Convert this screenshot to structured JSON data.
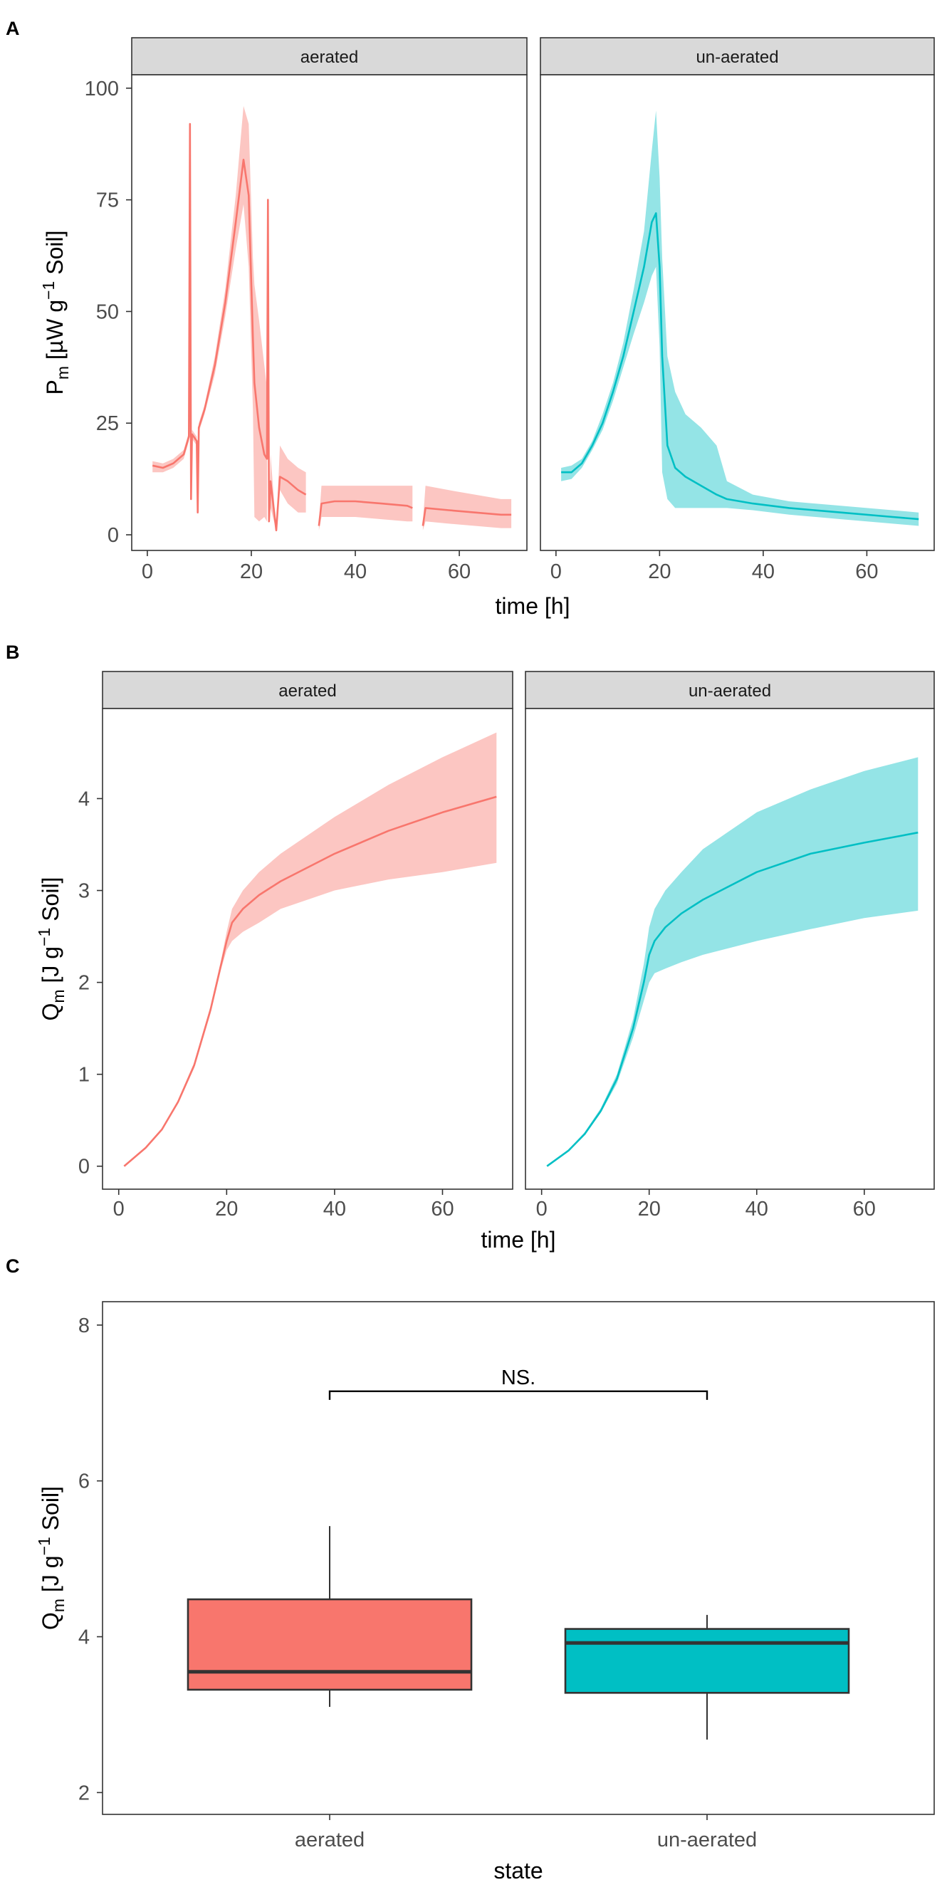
{
  "chart_data": [
    {
      "panel": "A",
      "type": "line",
      "ylabel": "P_m [µW g^-1 Soil]",
      "ylabel_parts": {
        "main": "P",
        "sub": "m",
        "unit1": " [µW g",
        "sup": "−1",
        "unit2": " Soil]"
      },
      "xlabel": "time [h]",
      "xlim": [
        -3,
        73
      ],
      "ylim": [
        -3.5,
        103
      ],
      "xticks": [
        0,
        20,
        40,
        60
      ],
      "yticks": [
        0,
        25,
        50,
        75,
        100
      ],
      "facets": [
        {
          "label": "aerated",
          "color": "#F8766D",
          "band_color": "#F8766D",
          "segments": [
            [
              [
                1,
                15.5,
                14,
                16.5
              ],
              [
                3,
                15,
                14,
                16
              ],
              [
                5,
                16,
                15,
                17
              ],
              [
                7,
                18,
                17,
                19
              ],
              [
                8,
                22,
                21,
                23
              ],
              [
                8.2,
                92,
                92,
                92
              ],
              [
                8.4,
                8,
                8,
                8
              ],
              [
                8.6,
                22.5,
                21.5,
                23.5
              ],
              [
                9.5,
                21,
                20,
                22
              ],
              [
                9.7,
                5,
                5,
                5
              ],
              [
                9.9,
                24,
                23,
                25
              ],
              [
                11,
                28,
                27,
                29
              ],
              [
                13,
                38,
                36,
                40
              ],
              [
                15,
                52,
                49,
                55
              ],
              [
                17,
                70,
                64,
                76
              ],
              [
                18.5,
                84,
                74,
                96
              ],
              [
                19.5,
                76,
                60,
                92
              ],
              [
                20.3,
                44,
                28,
                62
              ],
              [
                20.6,
                34,
                4,
                56
              ],
              [
                21.5,
                24,
                3,
                48
              ],
              [
                22.5,
                18,
                4,
                38
              ],
              [
                23,
                17,
                3,
                33
              ],
              [
                23.2,
                75,
                75,
                75
              ],
              [
                23.4,
                3,
                3,
                3
              ],
              [
                23.7,
                12,
                6,
                18
              ],
              [
                24.8,
                1,
                1,
                1
              ],
              [
                25.5,
                13,
                10,
                20
              ],
              [
                27,
                12,
                7,
                17
              ],
              [
                29,
                10,
                5,
                15
              ],
              [
                30.5,
                9,
                5,
                14
              ]
            ],
            [
              [
                33,
                2,
                1,
                3
              ],
              [
                33.5,
                7,
                4,
                11
              ],
              [
                36,
                7.5,
                4,
                11
              ],
              [
                40,
                7.5,
                4,
                11
              ],
              [
                45,
                7,
                3.5,
                11
              ],
              [
                50,
                6.5,
                3,
                11
              ],
              [
                51,
                6,
                3,
                11
              ]
            ],
            [
              [
                53,
                2,
                1,
                3
              ],
              [
                53.5,
                6,
                3,
                11
              ],
              [
                58,
                5.5,
                2.5,
                10
              ],
              [
                63,
                5,
                2,
                9
              ],
              [
                68,
                4.5,
                1.5,
                8
              ],
              [
                70,
                4.5,
                1.5,
                8
              ]
            ]
          ]
        },
        {
          "label": "un-aerated",
          "color": "#00BFC4",
          "band_color": "#00BFC4",
          "segments": [
            [
              [
                1,
                14,
                12,
                15
              ],
              [
                3,
                14,
                12.5,
                15.5
              ],
              [
                5,
                16,
                15,
                17
              ],
              [
                7,
                20,
                19,
                21
              ],
              [
                9,
                25,
                23.5,
                27
              ],
              [
                11,
                32,
                30,
                34
              ],
              [
                13,
                40,
                37.5,
                43
              ],
              [
                15,
                50,
                45,
                55
              ],
              [
                17,
                60,
                52,
                68
              ],
              [
                18.5,
                70,
                58,
                86
              ],
              [
                19.3,
                72,
                60,
                95
              ],
              [
                20,
                60,
                42,
                80
              ],
              [
                20.5,
                40,
                14,
                62
              ],
              [
                21.5,
                20,
                8,
                40
              ],
              [
                23,
                15,
                6,
                32
              ],
              [
                25,
                13,
                6,
                27
              ],
              [
                28,
                11,
                6,
                24
              ],
              [
                31,
                9,
                6,
                20
              ],
              [
                33,
                8,
                6,
                12
              ],
              [
                38,
                7,
                5.5,
                9
              ],
              [
                45,
                6,
                4.5,
                7.5
              ],
              [
                55,
                5,
                3.5,
                6.5
              ],
              [
                65,
                4,
                2.5,
                5.5
              ],
              [
                70,
                3.5,
                2,
                5
              ]
            ]
          ]
        }
      ]
    },
    {
      "panel": "B",
      "type": "line",
      "ylabel": "Q_m [J g^-1 Soil]",
      "ylabel_parts": {
        "main": "Q",
        "sub": "m",
        "unit1": " [J g",
        "sup": "−1",
        "unit2": " Soil]"
      },
      "xlabel": "time [h]",
      "xlim": [
        -3,
        73
      ],
      "ylim": [
        -0.25,
        4.98
      ],
      "xticks": [
        0,
        20,
        40,
        60
      ],
      "yticks": [
        0,
        1,
        2,
        3,
        4
      ],
      "facets": [
        {
          "label": "aerated",
          "color": "#F8766D",
          "band_color": "#F8766D",
          "segments": [
            [
              [
                1,
                0,
                0,
                0
              ],
              [
                5,
                0.2,
                0.19,
                0.21
              ],
              [
                8,
                0.4,
                0.39,
                0.41
              ],
              [
                11,
                0.7,
                0.68,
                0.72
              ],
              [
                14,
                1.1,
                1.07,
                1.13
              ],
              [
                17,
                1.7,
                1.66,
                1.74
              ],
              [
                19,
                2.2,
                2.15,
                2.25
              ],
              [
                20,
                2.45,
                2.35,
                2.55
              ],
              [
                21,
                2.65,
                2.45,
                2.8
              ],
              [
                23,
                2.8,
                2.55,
                3.0
              ],
              [
                26,
                2.95,
                2.65,
                3.2
              ],
              [
                30,
                3.1,
                2.8,
                3.4
              ],
              [
                40,
                3.4,
                3.0,
                3.8
              ],
              [
                50,
                3.65,
                3.12,
                4.15
              ],
              [
                60,
                3.85,
                3.2,
                4.45
              ],
              [
                70,
                4.02,
                3.3,
                4.72
              ]
            ]
          ]
        },
        {
          "label": "un-aerated",
          "color": "#00BFC4",
          "band_color": "#00BFC4",
          "segments": [
            [
              [
                1,
                0,
                0,
                0
              ],
              [
                5,
                0.17,
                0.16,
                0.18
              ],
              [
                8,
                0.35,
                0.34,
                0.37
              ],
              [
                11,
                0.6,
                0.58,
                0.63
              ],
              [
                14,
                0.95,
                0.9,
                1.0
              ],
              [
                17,
                1.5,
                1.4,
                1.6
              ],
              [
                19,
                2.0,
                1.8,
                2.2
              ],
              [
                20,
                2.3,
                2.0,
                2.6
              ],
              [
                21,
                2.45,
                2.1,
                2.8
              ],
              [
                23,
                2.6,
                2.15,
                3.0
              ],
              [
                26,
                2.75,
                2.22,
                3.2
              ],
              [
                30,
                2.9,
                2.3,
                3.45
              ],
              [
                40,
                3.2,
                2.45,
                3.85
              ],
              [
                50,
                3.4,
                2.58,
                4.1
              ],
              [
                60,
                3.52,
                2.7,
                4.3
              ],
              [
                70,
                3.63,
                2.78,
                4.45
              ]
            ]
          ]
        }
      ]
    },
    {
      "panel": "C",
      "type": "box",
      "ylabel": "Q_m [J g^-1 Soil]",
      "ylabel_parts": {
        "main": "Q",
        "sub": "m",
        "unit1": " [J g",
        "sup": "−1",
        "unit2": " Soil]"
      },
      "xlabel": "state",
      "categories": [
        "aerated",
        "un-aerated"
      ],
      "ylim": [
        1.72,
        8.3
      ],
      "yticks": [
        2,
        4,
        6,
        8
      ],
      "boxes": [
        {
          "name": "aerated",
          "color": "#F8766D",
          "min": 3.1,
          "q1": 3.32,
          "median": 3.55,
          "q3": 4.48,
          "max": 5.42
        },
        {
          "name": "un-aerated",
          "color": "#00BFC4",
          "min": 2.68,
          "q1": 3.28,
          "median": 3.92,
          "q3": 4.1,
          "max": 4.28
        }
      ],
      "annotation": {
        "text": "NS.",
        "y": 7.15
      }
    }
  ]
}
